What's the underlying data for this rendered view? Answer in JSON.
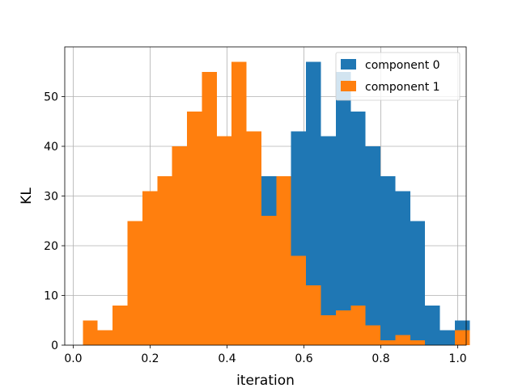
{
  "chart_data": {
    "type": "bar",
    "subtype": "histogram",
    "xlabel": "iteration",
    "ylabel": "KL",
    "xlim": [
      -0.022,
      1.022
    ],
    "ylim": [
      0,
      60
    ],
    "xticks": [
      "0.0",
      "0.2",
      "0.4",
      "0.6",
      "0.8",
      "1.0"
    ],
    "xtick_values": [
      0.0,
      0.2,
      0.4,
      0.6,
      0.8,
      1.0
    ],
    "yticks": [
      "0",
      "10",
      "20",
      "30",
      "40",
      "50"
    ],
    "ytick_values": [
      0,
      10,
      20,
      30,
      40,
      50
    ],
    "grid": true,
    "legend_position": "upper right",
    "bin_start": 0.025,
    "bin_width": 0.0387,
    "series": [
      {
        "name": "component 0",
        "color": "#1f77b4",
        "values": [
          0,
          0,
          0,
          0,
          0,
          0,
          0,
          0,
          0,
          0,
          0,
          0,
          34,
          0,
          43,
          57,
          42,
          55,
          47,
          40,
          34,
          31,
          25,
          8,
          3,
          5
        ]
      },
      {
        "name": "component 1",
        "color": "#ff7f0e",
        "values": [
          5,
          3,
          8,
          25,
          31,
          34,
          40,
          47,
          55,
          42,
          57,
          43,
          26,
          34,
          18,
          12,
          6,
          7,
          8,
          4,
          1,
          2,
          1,
          0,
          0,
          3
        ]
      }
    ]
  }
}
